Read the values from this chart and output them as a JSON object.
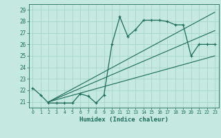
{
  "title": "",
  "xlabel": "Humidex (Indice chaleur)",
  "xlim": [
    -0.5,
    23.5
  ],
  "ylim": [
    20.5,
    29.5
  ],
  "xticks": [
    0,
    1,
    2,
    3,
    4,
    5,
    6,
    7,
    8,
    9,
    10,
    11,
    12,
    13,
    14,
    15,
    16,
    17,
    18,
    19,
    20,
    21,
    22,
    23
  ],
  "yticks": [
    21,
    22,
    23,
    24,
    25,
    26,
    27,
    28,
    29
  ],
  "bg_color": "#c5e8e0",
  "line_color": "#1a6b5a",
  "grid_color": "#a8d4c8",
  "data_x": [
    0,
    1,
    2,
    3,
    4,
    5,
    6,
    7,
    8,
    9,
    10,
    11,
    12,
    13,
    14,
    15,
    16,
    17,
    18,
    19,
    20,
    21,
    22,
    23
  ],
  "data_y": [
    22.2,
    21.6,
    20.9,
    20.9,
    20.9,
    20.9,
    21.7,
    21.5,
    20.9,
    21.6,
    26.0,
    28.4,
    26.7,
    27.3,
    28.1,
    28.1,
    28.1,
    28.0,
    27.7,
    27.7,
    25.0,
    26.0,
    26.0,
    26.0
  ],
  "trend1_x": [
    2,
    23
  ],
  "trend1_y": [
    21.0,
    28.8
  ],
  "trend2_x": [
    2,
    23
  ],
  "trend2_y": [
    21.0,
    27.2
  ],
  "trend3_x": [
    2,
    23
  ],
  "trend3_y": [
    21.0,
    25.0
  ]
}
